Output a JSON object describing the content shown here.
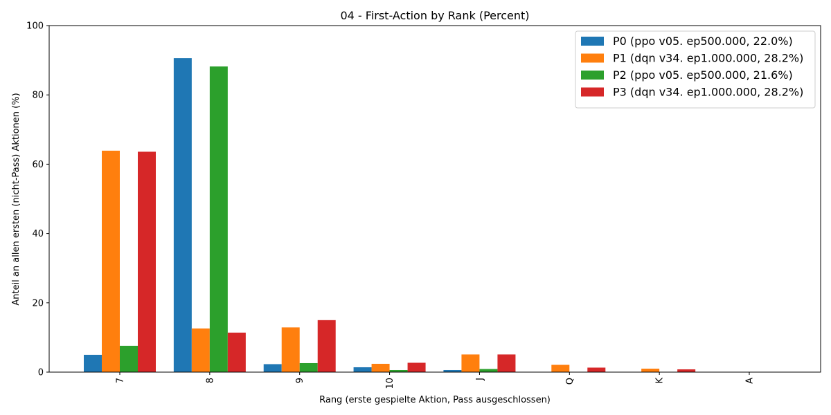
{
  "chart_data": {
    "type": "bar",
    "title": "04 - First-Action by Rank (Percent)",
    "xlabel": "Rang (erste gespielte Aktion, Pass ausgeschlossen)",
    "ylabel": "Anteil an allen ersten (nicht-Pass) Aktionen (%)",
    "categories": [
      "7",
      "8",
      "9",
      "10",
      "J",
      "Q",
      "K",
      "A"
    ],
    "ylim": [
      0,
      100
    ],
    "yticks": [
      "0",
      "20",
      "40",
      "60",
      "80",
      "100"
    ],
    "legend_position": "top-right",
    "grid": false,
    "series": [
      {
        "name": "P0 (ppo v05. ep500.000, 22.0%)",
        "color": "#1f77b4",
        "values": [
          5.0,
          90.6,
          2.3,
          1.4,
          0.6,
          0.0,
          0.0,
          0.0
        ]
      },
      {
        "name": "P1 (dqn v34. ep1.000.000, 28.2%)",
        "color": "#ff7f0e",
        "values": [
          63.9,
          12.6,
          12.9,
          2.4,
          5.1,
          2.1,
          1.0,
          0.0
        ]
      },
      {
        "name": "P2 (ppo v05. ep500.000, 21.6%)",
        "color": "#2ca02c",
        "values": [
          7.6,
          88.2,
          2.6,
          0.6,
          0.9,
          0.0,
          0.0,
          0.0
        ]
      },
      {
        "name": "P3 (dqn v34. ep1.000.000, 28.2%)",
        "color": "#d62728",
        "values": [
          63.6,
          11.4,
          15.0,
          2.7,
          5.1,
          1.3,
          0.8,
          0.0
        ]
      }
    ]
  }
}
